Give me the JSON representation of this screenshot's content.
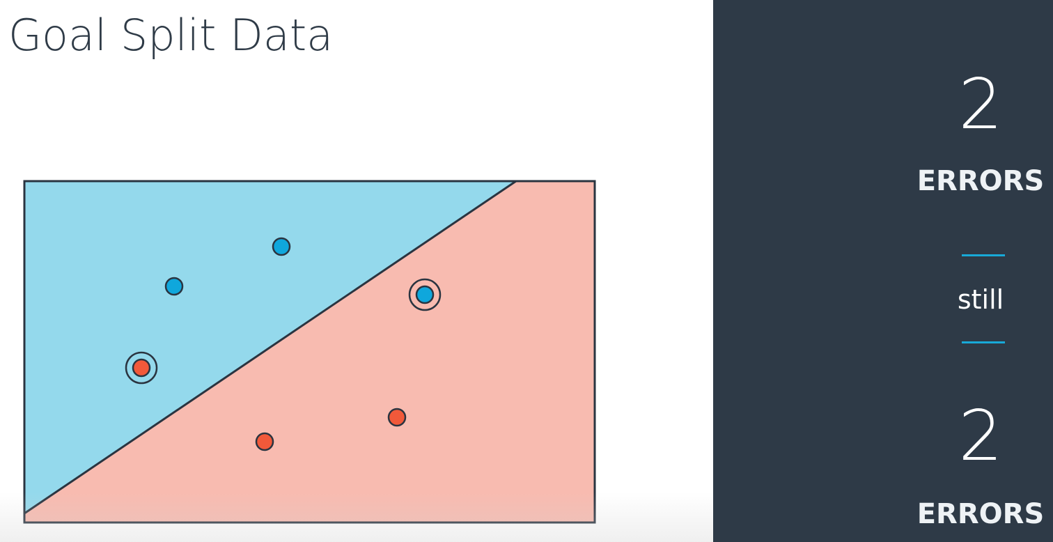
{
  "title": "Goal Split Data",
  "diagram": {
    "description_colors": {
      "blue_region": "#94d9ec",
      "red_region": "#f8bbb0",
      "blue_point": "#0fa7dc",
      "red_point": "#f1593a",
      "outline": "#2a3440"
    },
    "points": [
      {
        "class": "blue",
        "misclassified": false
      },
      {
        "class": "blue",
        "misclassified": false
      },
      {
        "class": "blue",
        "misclassified": true
      },
      {
        "class": "red",
        "misclassified": true
      },
      {
        "class": "red",
        "misclassified": false
      },
      {
        "class": "red",
        "misclassified": false
      }
    ]
  },
  "sidebar": {
    "top_count": "2",
    "top_label": "ERRORS",
    "middle_text": "still",
    "bottom_count": "2",
    "bottom_label": "ERRORS",
    "background": "#2e3a47",
    "accent": "#18a9d8"
  }
}
